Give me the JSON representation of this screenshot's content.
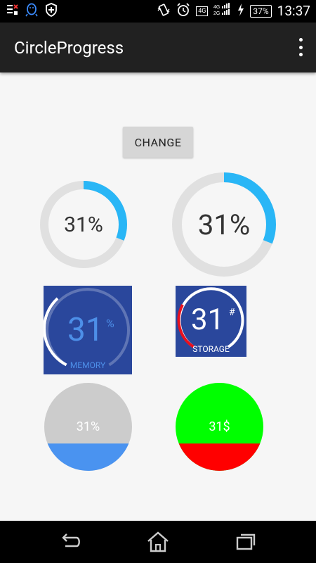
{
  "status_bar": {
    "time": "13:37",
    "battery": "37%",
    "network": "4G",
    "icons": [
      "notification-list-icon",
      "qq-icon",
      "shield-icon",
      "vibrate-icon",
      "alarm-icon",
      "lte-icon",
      "signal-icon",
      "charging-icon",
      "battery-icon"
    ]
  },
  "app_bar": {
    "title": "CircleProgress",
    "overflow_icon": "more-vert-icon"
  },
  "change_button": {
    "label": "CHANGE"
  },
  "progress_value": 31,
  "widgets": {
    "ring_small": {
      "text": "31%",
      "progress_color": "#29b6f6",
      "track_color": "#e0e0e0"
    },
    "ring_large": {
      "text": "31%",
      "progress_color": "#29b6f6",
      "track_color": "#e0e0e0"
    },
    "memory_arc": {
      "value": "31",
      "suffix": "%",
      "label": "MEMORY",
      "background_color": "#2a479c",
      "text_color": "#4d8fe8"
    },
    "storage_arc": {
      "value": "31",
      "suffix": "#",
      "label": "STORAGE",
      "background_color": "#2a479c",
      "progress_color": "#e8101f",
      "text_color": "#ffffff"
    },
    "fill_gray": {
      "text": "31%",
      "circle_color": "#cccccc",
      "fill_color": "#4a93f0"
    },
    "fill_green": {
      "text": "31$",
      "circle_color": "#00ff00",
      "fill_color": "#ff0000"
    }
  },
  "nav_bar": {
    "icons": [
      "back-icon",
      "home-icon",
      "recents-icon"
    ]
  }
}
